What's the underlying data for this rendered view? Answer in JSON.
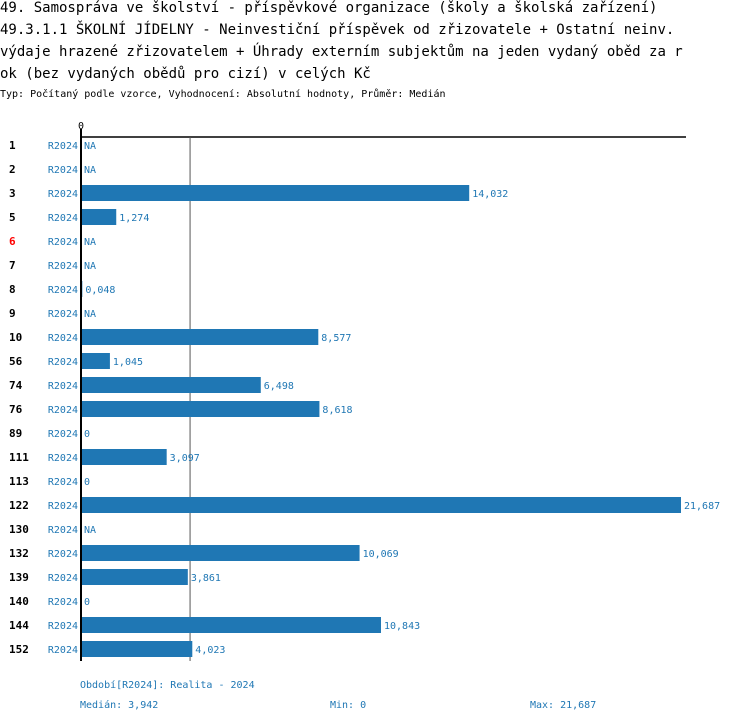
{
  "title_lines": [
    "49. Samospráva ve školství - příspěvkové organizace (školy a školská zařízení)",
    "49.3.1.1 ŠKOLNÍ JÍDELNY - Neinvestiční příspěvek od zřizovatele + Ostatní neinv.",
    "výdaje hrazené zřizovatelem + Úhrady externím subjektům na jeden vydaný oběd za r",
    "ok (bez vydaných obědů pro cizí) v celých Kč"
  ],
  "subtitle": "Typ: Počítaný podle vzorce, Vyhodnocení: Absolutní hodnoty, Průměr: Medián",
  "footer": {
    "period": "Období[R2024]: Realita - 2024",
    "median": "Medián: 3,942",
    "min": "Min: 0",
    "max": "Max: 21,687"
  },
  "colors": {
    "bar": "#1f77b4",
    "highlight": "#ff0000"
  },
  "chart_data": {
    "type": "bar",
    "orientation": "horizontal",
    "x_tick_labels": [
      "0"
    ],
    "xlim": [
      0,
      21687
    ],
    "median": 3.942,
    "categories": [
      "1",
      "2",
      "3",
      "5",
      "6",
      "7",
      "8",
      "9",
      "10",
      "56",
      "74",
      "76",
      "89",
      "111",
      "113",
      "122",
      "130",
      "132",
      "139",
      "140",
      "144",
      "152"
    ],
    "highlighted": [
      "6"
    ],
    "series_label": "R2024",
    "values": [
      null,
      null,
      14.032,
      1.274,
      null,
      null,
      0.048,
      null,
      8.577,
      1.045,
      6.498,
      8.618,
      0,
      3.097,
      0,
      21.687,
      null,
      10.069,
      3.861,
      0,
      10.843,
      4.023
    ],
    "labels": [
      "NA",
      "NA",
      "14,032",
      "1,274",
      "NA",
      "NA",
      "0,048",
      "NA",
      "8,577",
      "1,045",
      "6,498",
      "8,618",
      "0",
      "3,097",
      "0",
      "21,687",
      "NA",
      "10,069",
      "3,861",
      "0",
      "10,843",
      "4,023"
    ]
  }
}
